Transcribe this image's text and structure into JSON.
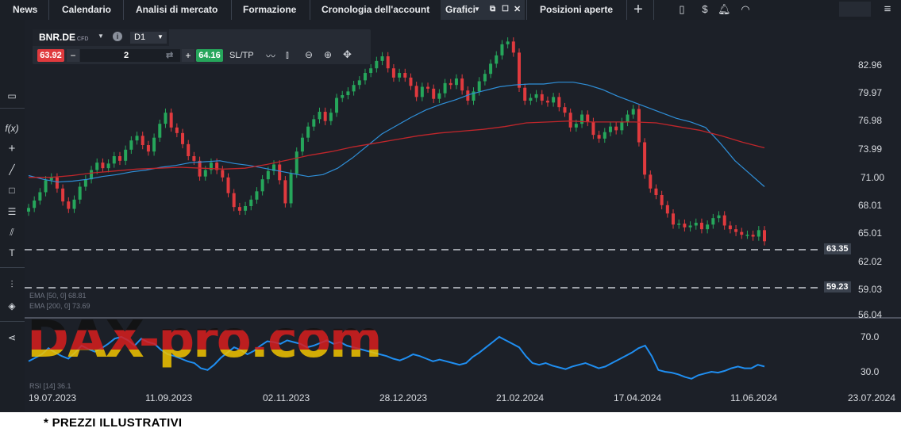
{
  "nav": {
    "tabs": [
      "News",
      "Calendario",
      "Analisi di mercato",
      "Formazione",
      "Cronologia dell'account"
    ],
    "active_tab": "Grafici",
    "positions_tab": "Posizioni aperte"
  },
  "instrument": {
    "symbol": "BNR.DE",
    "type": "CFD",
    "timeframe": "D1",
    "sell_price": "63.92",
    "buy_price": "64.16",
    "quantity": "2",
    "sltp_label": "SL/TP"
  },
  "chart_data": {
    "type": "candlestick",
    "y_ticks": [
      "82.96",
      "79.97",
      "76.98",
      "73.99",
      "71.00",
      "68.01",
      "65.01",
      "62.02",
      "59.03",
      "56.04"
    ],
    "x_ticks": [
      "19.07.2023",
      "11.09.2023",
      "02.11.2023",
      "28.12.2023",
      "21.02.2024",
      "17.04.2024",
      "11.06.2024",
      "23.07.2024"
    ],
    "levels": [
      "63.35",
      "59.23"
    ],
    "indicators": [
      "EMA [50, 0] 68.81",
      "EMA [200, 0] 73.69"
    ],
    "rsi_ticks": [
      "70.0",
      "30.0"
    ],
    "rsi_label": "RSI [14] 36.1",
    "closes": [
      67.5,
      68.3,
      69.2,
      70.5,
      70.8,
      69.6,
      68.2,
      67.4,
      68.4,
      69.8,
      70.6,
      71.6,
      72.4,
      71.8,
      72.3,
      73.1,
      72.6,
      73.8,
      74.8,
      75.3,
      74.3,
      73.6,
      75.1,
      76.6,
      77.8,
      76.2,
      75.6,
      74.4,
      73.1,
      72.6,
      70.9,
      71.6,
      72.4,
      71.6,
      70.8,
      69.1,
      67.6,
      67.2,
      67.7,
      68.4,
      69.3,
      70.6,
      71.5,
      72.2,
      70.5,
      68.0,
      71.2,
      73.6,
      75.1,
      76.3,
      77.1,
      77.9,
      76.9,
      77.8,
      79.4,
      79.7,
      80.1,
      80.8,
      81.3,
      82.1,
      82.6,
      83.4,
      83.9,
      82.6,
      81.6,
      82.1,
      81.6,
      80.7,
      79.5,
      80.6,
      80.4,
      79.3,
      79.9,
      81.0,
      80.8,
      81.5,
      80.2,
      79.1,
      80.1,
      81.2,
      82.0,
      83.1,
      84.0,
      85.2,
      85.5,
      84.3,
      80.5,
      79.1,
      79.4,
      79.8,
      79.1,
      78.9,
      79.5,
      78.4,
      77.8,
      76.2,
      76.6,
      77.6,
      76.8,
      75.4,
      75.0,
      75.7,
      76.3,
      75.9,
      76.8,
      77.6,
      78.2,
      74.6,
      71.1,
      69.6,
      68.9,
      67.8,
      66.9,
      65.7,
      65.8,
      65.4,
      65.6,
      65.9,
      65.2,
      65.7,
      66.4,
      66.7,
      65.6,
      65.2,
      64.9,
      64.6,
      64.6,
      64.4,
      65.1,
      63.9
    ],
    "ema50": [
      71.0,
      70.6,
      70.3,
      70.4,
      70.6,
      70.9,
      71.1,
      71.4,
      71.6,
      71.9,
      72.1,
      72.4,
      72.5,
      72.6,
      72.3,
      72.1,
      71.8,
      71.5,
      71.2,
      70.9,
      71.1,
      71.8,
      72.9,
      74.2,
      75.5,
      76.4,
      77.3,
      78.1,
      78.7,
      79.2,
      79.8,
      80.2,
      80.6,
      80.8,
      80.9,
      80.9,
      81.1,
      81.1,
      80.8,
      80.3,
      79.6,
      79.0,
      78.4,
      77.8,
      77.2,
      76.8,
      76.2,
      74.5,
      72.6,
      71.2,
      69.8
    ],
    "ema200": [
      70.8,
      70.8,
      71.0,
      71.3,
      71.5,
      71.7,
      71.8,
      71.9,
      71.8,
      71.7,
      71.8,
      72.2,
      72.7,
      73.2,
      73.6,
      74.1,
      74.5,
      74.9,
      75.3,
      75.6,
      75.8,
      76.0,
      76.3,
      76.7,
      76.8,
      76.9,
      76.8,
      76.8,
      76.8,
      76.7,
      76.3,
      75.9,
      75.3,
      74.6,
      74.0
    ],
    "rsi": [
      42,
      46,
      50,
      57,
      52,
      48,
      45,
      52,
      60,
      56,
      53,
      57,
      62,
      68,
      70,
      66,
      60,
      68,
      64,
      62,
      55,
      50,
      48,
      45,
      42,
      40,
      34,
      32,
      38,
      46,
      52,
      58,
      55,
      50,
      54,
      60,
      65,
      64,
      62,
      66,
      64,
      62,
      58,
      60,
      63,
      66,
      62,
      64,
      60,
      58,
      56,
      54,
      52,
      50,
      48,
      45,
      43,
      46,
      50,
      48,
      45,
      42,
      44,
      42,
      40,
      38,
      40,
      47,
      52,
      58,
      64,
      70,
      66,
      62,
      58,
      48,
      40,
      38,
      40,
      37,
      35,
      33,
      36,
      38,
      40,
      37,
      34,
      36,
      40,
      44,
      48,
      52,
      57,
      60,
      48,
      32,
      30,
      29,
      27,
      24,
      22,
      26,
      28,
      30,
      29,
      31,
      34,
      36,
      34,
      34,
      38,
      36
    ]
  },
  "footer_note": "* PREZZI ILLUSTRATIVI",
  "watermark": "DAX-pro.com",
  "colors": {
    "up": "#26a65b",
    "down": "#e03a3e",
    "ema50": "#2f8fd8",
    "ema200": "#c0262b",
    "rsi": "#1f8ef1",
    "background": "#1c2028"
  }
}
